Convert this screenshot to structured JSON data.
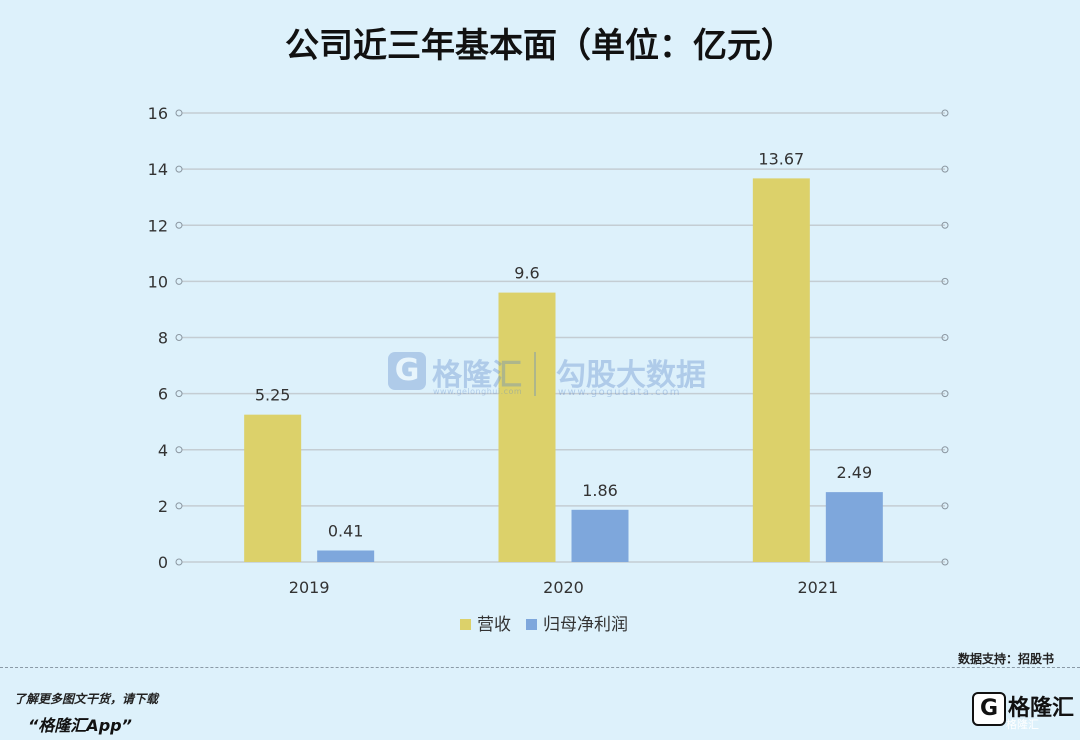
{
  "chart_data": {
    "type": "bar",
    "title": "公司近三年基本面（单位：亿元）",
    "categories": [
      "2019",
      "2020",
      "2021"
    ],
    "series": [
      {
        "name": "营收",
        "values": [
          5.25,
          9.6,
          13.67
        ],
        "labels": [
          "5.25",
          "9.6",
          "13.67"
        ],
        "color": "#dcd16a"
      },
      {
        "name": "归母净利润",
        "values": [
          0.41,
          1.86,
          2.49
        ],
        "labels": [
          "0.41",
          "1.86",
          "2.49"
        ],
        "color": "#7ea7dc"
      }
    ],
    "ylim": [
      0,
      16
    ],
    "yticks": [
      "0",
      "2",
      "4",
      "6",
      "8",
      "10",
      "12",
      "14",
      "16"
    ],
    "grid": true,
    "legend_position": "bottom",
    "xlabel": "",
    "ylabel": ""
  },
  "watermark": {
    "logo_letter": "G",
    "name": "格隆汇",
    "url_small": "www.gelonghui.com",
    "name2": "勾股大数据",
    "url2": "www.gogudata.com"
  },
  "footer": {
    "data_source": "数据支持：招股书",
    "promo_line1": "了解更多图文干货，请下载",
    "promo_line2": "“格隆汇App”",
    "brand_logo": "G",
    "brand_name": "格隆汇",
    "brand_name_small": "格隆汇"
  }
}
